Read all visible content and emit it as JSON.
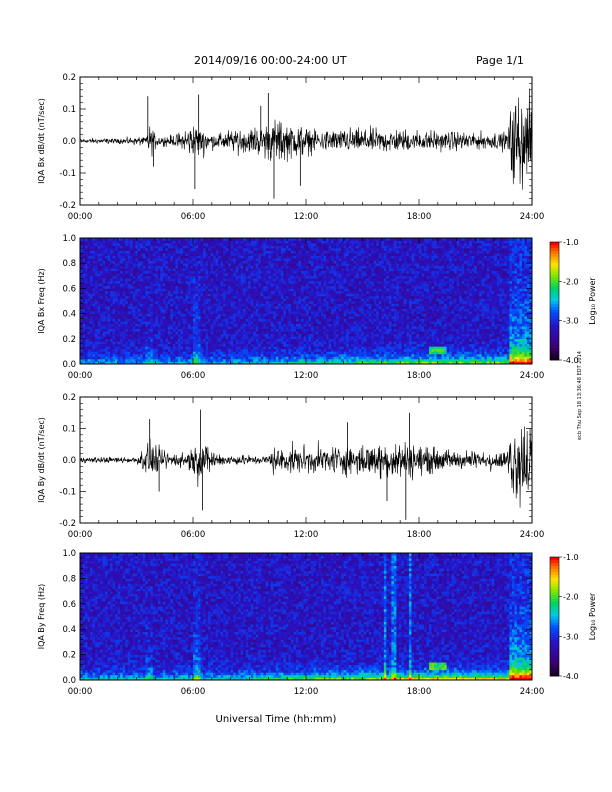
{
  "header": {
    "title": "2014/09/16  00:00-24:00 UT",
    "page": "Page 1/1"
  },
  "stamp": "ecb Thu Sep 18 13:36:48 EDT 2014",
  "chart_data": [
    {
      "type": "line",
      "ylabel": "IQA Bx dB/dt (nT/sec)",
      "xlim": [
        0,
        24
      ],
      "ylim": [
        -0.2,
        0.2
      ],
      "yticks": [
        "-0.2",
        "-0.1",
        "0.0",
        "0.1",
        "0.2"
      ],
      "xticks": [
        "00:00",
        "06:00",
        "12:00",
        "18:00",
        "24:00"
      ],
      "activity": [
        {
          "t": 0,
          "a": 0.012
        },
        {
          "t": 2,
          "a": 0.012
        },
        {
          "t": 3.5,
          "a": 0.02
        },
        {
          "t": 3.7,
          "a": 0.07
        },
        {
          "t": 4.2,
          "a": 0.02
        },
        {
          "t": 5,
          "a": 0.025
        },
        {
          "t": 6.2,
          "a": 0.08
        },
        {
          "t": 7,
          "a": 0.035
        },
        {
          "t": 9.5,
          "a": 0.07
        },
        {
          "t": 10.5,
          "a": 0.1
        },
        {
          "t": 12.5,
          "a": 0.05
        },
        {
          "t": 15,
          "a": 0.055
        },
        {
          "t": 18,
          "a": 0.05
        },
        {
          "t": 20,
          "a": 0.04
        },
        {
          "t": 22.7,
          "a": 0.04
        },
        {
          "t": 22.9,
          "a": 0.2
        },
        {
          "t": 24,
          "a": 0.2
        }
      ],
      "spikes": [
        {
          "t": 3.6,
          "v": 0.14
        },
        {
          "t": 3.9,
          "v": -0.08
        },
        {
          "t": 6.3,
          "v": 0.145
        },
        {
          "t": 6.1,
          "v": -0.15
        },
        {
          "t": 10.0,
          "v": 0.15
        },
        {
          "t": 10.3,
          "v": -0.18
        },
        {
          "t": 9.6,
          "v": 0.11
        },
        {
          "t": 11.7,
          "v": -0.14
        }
      ]
    },
    {
      "type": "heatmap",
      "ylabel": "IQA Bx Freq (Hz)",
      "xlim": [
        0,
        24
      ],
      "ylim": [
        0,
        1.0
      ],
      "yticks": [
        "0.0",
        "0.2",
        "0.4",
        "0.6",
        "0.8",
        "1.0"
      ],
      "xticks": [
        "00:00",
        "06:00",
        "12:00",
        "18:00",
        "24:00"
      ],
      "colorbar": {
        "label": "Log₁₀ Power",
        "range": [
          -4.0,
          -1.0
        ],
        "ticks": [
          "-1.0",
          "-2.0",
          "-3.0",
          "-4.0"
        ]
      }
    },
    {
      "type": "line",
      "ylabel": "IQA By dB/dt (nT/sec)",
      "xlim": [
        0,
        24
      ],
      "ylim": [
        -0.2,
        0.2
      ],
      "yticks": [
        "-0.2",
        "-0.1",
        "0.0",
        "0.1",
        "0.2"
      ],
      "xticks": [
        "00:00",
        "06:00",
        "12:00",
        "18:00",
        "24:00"
      ],
      "activity": [
        {
          "t": 0,
          "a": 0.012
        },
        {
          "t": 3,
          "a": 0.015
        },
        {
          "t": 3.6,
          "a": 0.08
        },
        {
          "t": 4.5,
          "a": 0.04
        },
        {
          "t": 5.5,
          "a": 0.03
        },
        {
          "t": 6.3,
          "a": 0.1
        },
        {
          "t": 7.5,
          "a": 0.025
        },
        {
          "t": 10,
          "a": 0.02
        },
        {
          "t": 10.2,
          "a": 0.06
        },
        {
          "t": 12,
          "a": 0.06
        },
        {
          "t": 14,
          "a": 0.065
        },
        {
          "t": 16.5,
          "a": 0.09
        },
        {
          "t": 17.5,
          "a": 0.08
        },
        {
          "t": 20,
          "a": 0.04
        },
        {
          "t": 22.7,
          "a": 0.04
        },
        {
          "t": 22.9,
          "a": 0.2
        },
        {
          "t": 24,
          "a": 0.2
        }
      ],
      "spikes": [
        {
          "t": 3.7,
          "v": 0.13
        },
        {
          "t": 6.4,
          "v": 0.16
        },
        {
          "t": 6.5,
          "v": -0.16
        },
        {
          "t": 17.5,
          "v": 0.15
        },
        {
          "t": 17.3,
          "v": -0.19
        },
        {
          "t": 16.3,
          "v": -0.13
        },
        {
          "t": 4.2,
          "v": -0.1
        },
        {
          "t": 14.2,
          "v": 0.12
        }
      ]
    },
    {
      "type": "heatmap",
      "ylabel": "IQA By Freq (Hz)",
      "xlim": [
        0,
        24
      ],
      "ylim": [
        0,
        1.0
      ],
      "yticks": [
        "0.0",
        "0.2",
        "0.4",
        "0.6",
        "0.8",
        "1.0"
      ],
      "xticks": [
        "00:00",
        "06:00",
        "12:00",
        "18:00",
        "24:00"
      ],
      "colorbar": {
        "label": "Log₁₀ Power",
        "range": [
          -4.0,
          -1.0
        ],
        "ticks": [
          "-1.0",
          "-2.0",
          "-3.0",
          "-4.0"
        ]
      },
      "xlabel": "Universal Time (hh:mm)"
    }
  ]
}
